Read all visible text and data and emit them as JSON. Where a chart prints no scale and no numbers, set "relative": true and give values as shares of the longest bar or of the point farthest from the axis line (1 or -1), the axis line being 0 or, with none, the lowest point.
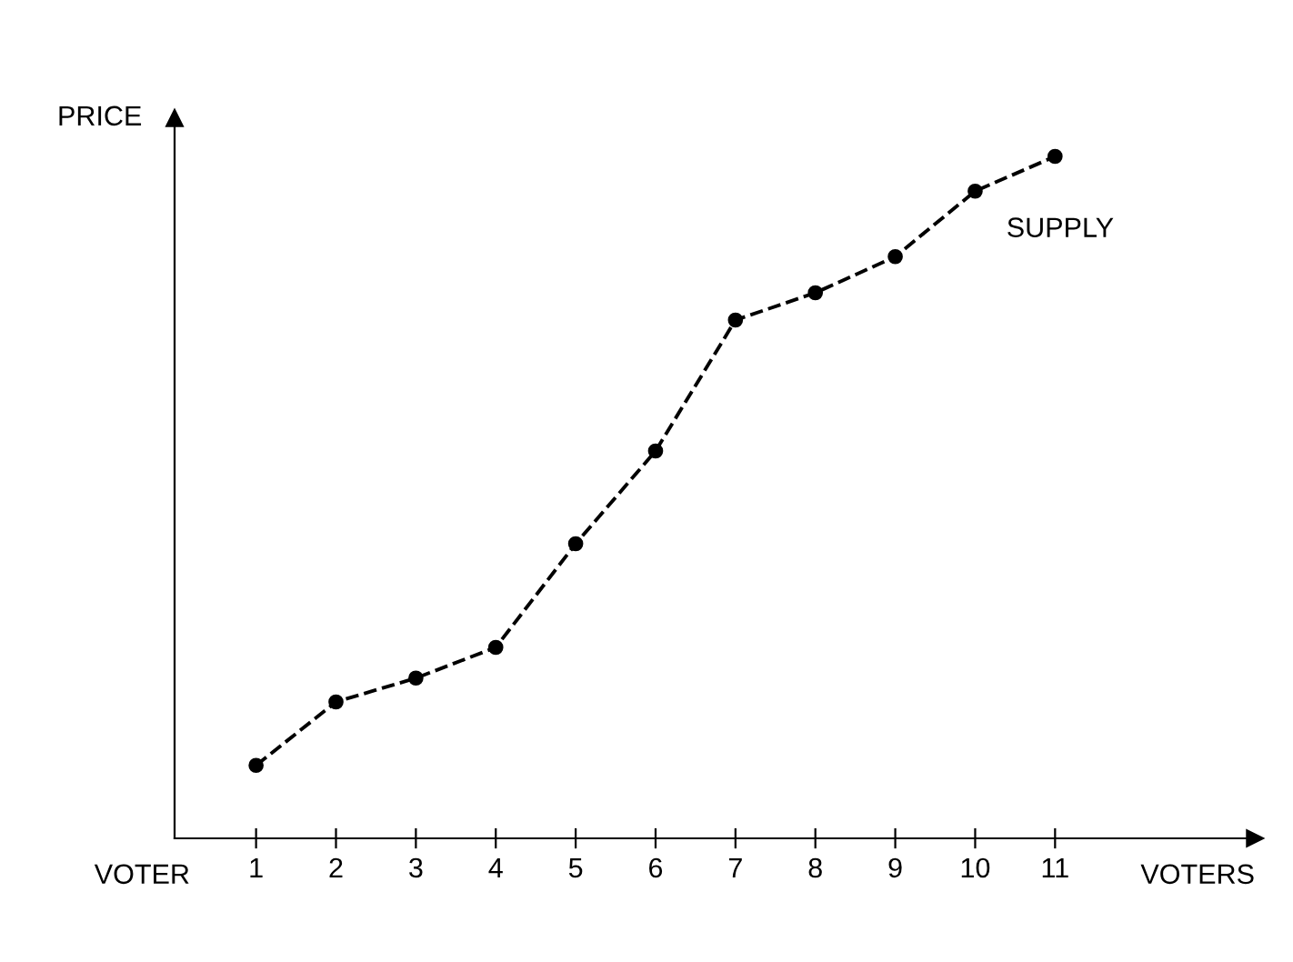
{
  "chart_data": {
    "type": "line",
    "relative": true,
    "xlabel": "VOTERS",
    "ylabel": "PRICE",
    "categories": [
      "1",
      "2",
      "3",
      "4",
      "5",
      "6",
      "7",
      "8",
      "9",
      "10",
      "11"
    ],
    "series": [
      {
        "color": "#000000",
        "values": [
          0.107,
          0.2,
          0.235,
          0.28,
          0.432,
          0.568,
          0.76,
          0.8,
          0.853,
          0.949,
          1
        ]
      }
    ],
    "annotations": [
      "VOTER",
      "SUPPLY"
    ],
    "marker": "circle",
    "line_style": "dashed",
    "grid": false,
    "legend": false
  }
}
